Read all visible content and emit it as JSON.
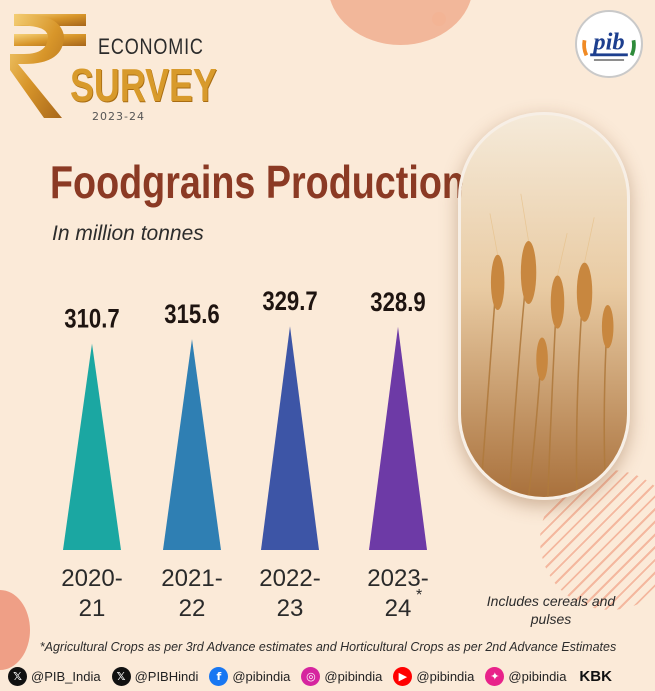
{
  "header": {
    "logo_line1": "ECONOMIC",
    "logo_line2": "SURVEY",
    "logo_year": "2023-24"
  },
  "title": "Foodgrains Production",
  "subtitle": "In million tonnes",
  "chart_data": {
    "type": "bar",
    "shape": "triangle",
    "categories": [
      {
        "line1": "2020-",
        "line2": "21"
      },
      {
        "line1": "2021-",
        "line2": "22"
      },
      {
        "line1": "2022-",
        "line2": "23"
      },
      {
        "line1": "2023-",
        "line2": "24",
        "mark": "*"
      }
    ],
    "values": [
      310.7,
      315.6,
      329.7,
      328.9
    ],
    "value_labels": [
      "310.7",
      "315.6",
      "329.7",
      "328.9"
    ],
    "colors": [
      "#1ba7a2",
      "#2f7fb3",
      "#3d55a6",
      "#6d3aa6"
    ],
    "ylabel": "In million tonnes",
    "grid": false,
    "legend": "none"
  },
  "note": "Includes cereals and pulses",
  "footnote": "*Agricultural Crops as per 3rd Advance estimates and Horticultural Crops as per 2nd Advance Estimates",
  "social": [
    {
      "icon": "x-icon",
      "color": "#111111",
      "glyph": "𝕏",
      "handle": "@PIB_India"
    },
    {
      "icon": "x-icon",
      "color": "#111111",
      "glyph": "𝕏",
      "handle": "@PIBHindi"
    },
    {
      "icon": "facebook-icon",
      "color": "#1877f2",
      "glyph": "f",
      "handle": "@pibindia"
    },
    {
      "icon": "instagram-icon",
      "color": "#d6249f",
      "glyph": "◎",
      "handle": "@pibindia"
    },
    {
      "icon": "youtube-icon",
      "color": "#ff0000",
      "glyph": "▶",
      "handle": "@pibindia"
    },
    {
      "icon": "kooapp-icon",
      "color": "#e8228a",
      "glyph": "✦",
      "handle": "@pibindia"
    }
  ],
  "credit": "KBK"
}
